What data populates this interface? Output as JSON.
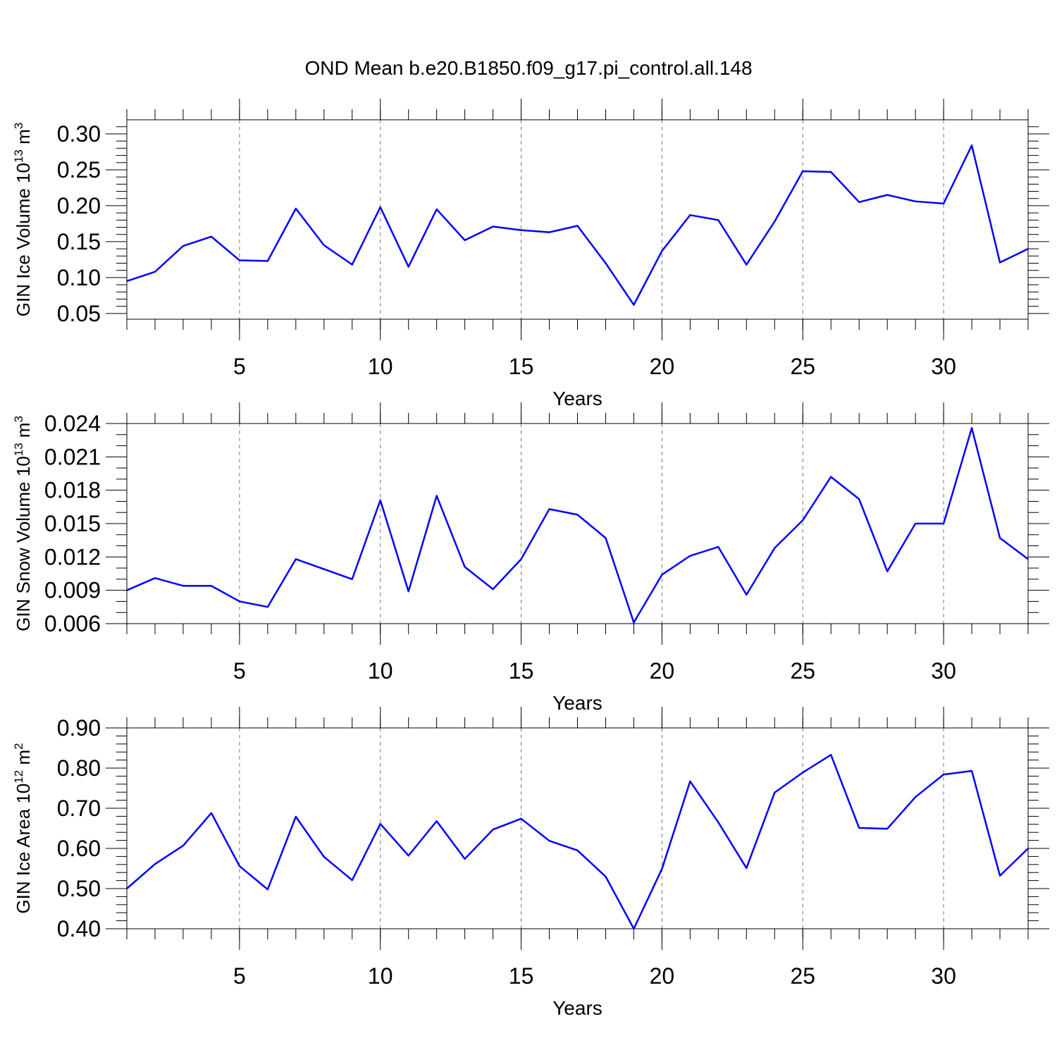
{
  "title": "OND Mean b.e20.B1850.f09_g17.pi_control.all.148",
  "chart_data": [
    {
      "type": "line",
      "ylabel": [
        "GIN Ice Volume 10",
        "13",
        " m",
        "3"
      ],
      "xlabel": "Years",
      "x": [
        1,
        2,
        3,
        4,
        5,
        6,
        7,
        8,
        9,
        10,
        11,
        12,
        13,
        14,
        15,
        16,
        17,
        18,
        19,
        20,
        21,
        22,
        23,
        24,
        25,
        26,
        27,
        28,
        29,
        30,
        31,
        32,
        33
      ],
      "values": [
        0.095,
        0.108,
        0.144,
        0.157,
        0.124,
        0.123,
        0.196,
        0.145,
        0.118,
        0.198,
        0.115,
        0.195,
        0.152,
        0.171,
        0.166,
        0.163,
        0.172,
        0.12,
        0.062,
        0.137,
        0.187,
        0.18,
        0.118,
        0.178,
        0.248,
        0.247,
        0.205,
        0.215,
        0.206,
        0.203,
        0.284,
        0.121,
        0.14
      ],
      "color": "#0000ff",
      "xlim": [
        1,
        33
      ],
      "xticks": [
        5,
        10,
        15,
        20,
        25,
        30
      ],
      "xgrid": true,
      "ylim": [
        0.042,
        0.3196
      ],
      "yticks": [
        {
          "value": 0.05,
          "label": "0.05"
        },
        {
          "value": 0.1,
          "label": "0.10"
        },
        {
          "value": 0.15,
          "label": "0.15"
        },
        {
          "value": 0.2,
          "label": "0.20"
        },
        {
          "value": 0.25,
          "label": "0.25"
        },
        {
          "value": 0.3,
          "label": "0.30"
        }
      ]
    },
    {
      "type": "line",
      "ylabel": [
        "GIN Snow Volume 10",
        "13",
        " m",
        "3"
      ],
      "xlabel": "Years",
      "x": [
        1,
        2,
        3,
        4,
        5,
        6,
        7,
        8,
        9,
        10,
        11,
        12,
        13,
        14,
        15,
        16,
        17,
        18,
        19,
        20,
        21,
        22,
        23,
        24,
        25,
        26,
        27,
        28,
        29,
        30,
        31,
        32,
        33
      ],
      "values": [
        0.009,
        0.0101,
        0.0094,
        0.0094,
        0.008,
        0.0075,
        0.0118,
        0.0109,
        0.01,
        0.0171,
        0.0089,
        0.0175,
        0.0111,
        0.0091,
        0.0118,
        0.0163,
        0.0158,
        0.0137,
        0.0061,
        0.0104,
        0.0121,
        0.0129,
        0.0086,
        0.0128,
        0.0153,
        0.0192,
        0.0172,
        0.0107,
        0.015,
        0.015,
        0.0236,
        0.0137,
        0.0118
      ],
      "color": "#0000ff",
      "xlim": [
        1,
        33
      ],
      "xticks": [
        5,
        10,
        15,
        20,
        25,
        30
      ],
      "xgrid": true,
      "ylim": [
        0.006,
        0.024
      ],
      "yticks": [
        0.006,
        0.009,
        0.012,
        0.015,
        0.018,
        0.021,
        0.024
      ]
    },
    {
      "type": "line",
      "ylabel": [
        "GIN Ice Area 10",
        "12",
        " m",
        "2"
      ],
      "xlabel": "Years",
      "x": [
        1,
        2,
        3,
        4,
        5,
        6,
        7,
        8,
        9,
        10,
        11,
        12,
        13,
        14,
        15,
        16,
        17,
        18,
        19,
        20,
        21,
        22,
        23,
        24,
        25,
        26,
        27,
        28,
        29,
        30,
        31,
        32,
        33
      ],
      "values": [
        0.5,
        0.561,
        0.607,
        0.688,
        0.556,
        0.498,
        0.679,
        0.579,
        0.521,
        0.661,
        0.582,
        0.668,
        0.574,
        0.647,
        0.674,
        0.619,
        0.595,
        0.53,
        0.4,
        0.549,
        0.767,
        0.665,
        0.551,
        0.739,
        0.789,
        0.833,
        0.651,
        0.649,
        0.728,
        0.784,
        0.793,
        0.532,
        0.6
      ],
      "color": "#0000ff",
      "xlim": [
        1,
        33
      ],
      "xticks": [
        5,
        10,
        15,
        20,
        25,
        30
      ],
      "xgrid": true,
      "ylim": [
        0.4,
        0.9
      ],
      "yticks": [
        {
          "value": 0.4,
          "label": "0.40"
        },
        {
          "value": 0.5,
          "label": "0.50"
        },
        {
          "value": 0.6,
          "label": "0.60"
        },
        {
          "value": 0.7,
          "label": "0.70"
        },
        {
          "value": 0.8,
          "label": "0.80"
        },
        {
          "value": 0.9,
          "label": "0.90"
        }
      ]
    }
  ]
}
